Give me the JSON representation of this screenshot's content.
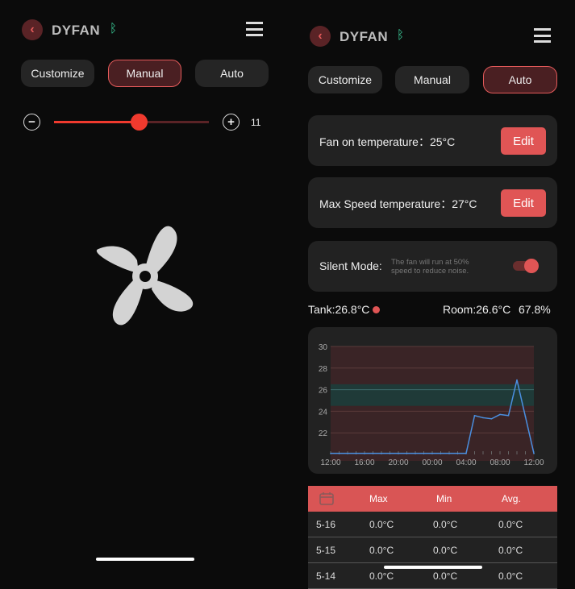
{
  "left": {
    "title": "DYFAN",
    "tabs": [
      "Customize",
      "Manual",
      "Auto"
    ],
    "active_tab": "Manual",
    "slider": {
      "value": 11,
      "fraction": 0.55
    }
  },
  "right": {
    "title": "DYFAN",
    "tabs": [
      "Customize",
      "Manual",
      "Auto"
    ],
    "active_tab": "Auto",
    "fan_on": {
      "label": "Fan on temperature：25°C",
      "button": "Edit"
    },
    "max_speed": {
      "label": "Max Speed temperature：27°C",
      "button": "Edit"
    },
    "silent": {
      "label": "Silent Mode:",
      "desc1": "The fan will run at 50%",
      "desc2": "speed to reduce noise.",
      "on": true
    },
    "tank": "Tank:26.8°C",
    "room": "Room:26.6°C",
    "humidity": "67.8%",
    "table": {
      "headers": [
        "Max",
        "Min",
        "Avg."
      ],
      "rows": [
        [
          "5-16",
          "0.0°C",
          "0.0°C",
          "0.0°C"
        ],
        [
          "5-15",
          "0.0°C",
          "0.0°C",
          "0.0°C"
        ],
        [
          "5-14",
          "0.0°C",
          "0.0°C",
          "0.0°C"
        ]
      ]
    }
  },
  "colors": {
    "accent": "#e05555",
    "bluetooth": "#3ed6a0",
    "line": "#4a8fe0",
    "band": "#1f3a38"
  },
  "chart_data": {
    "type": "line",
    "x": [
      "12:00",
      "13:00",
      "14:00",
      "15:00",
      "16:00",
      "17:00",
      "18:00",
      "19:00",
      "20:00",
      "21:00",
      "22:00",
      "23:00",
      "00:00",
      "01:00",
      "02:00",
      "03:00",
      "04:00",
      "05:00",
      "06:00",
      "07:00",
      "08:00",
      "09:00",
      "10:00",
      "11:00",
      "12:00"
    ],
    "values": [
      20.1,
      20.1,
      20.1,
      20.1,
      20.1,
      20.1,
      20.1,
      20.1,
      20.1,
      20.1,
      20.1,
      20.1,
      20.1,
      20.1,
      20.1,
      20.1,
      20.1,
      23.6,
      23.4,
      23.3,
      23.7,
      23.6,
      26.9,
      23.5,
      20.1
    ],
    "xticks": [
      "12:00",
      "16:00",
      "20:00",
      "00:00",
      "04:00",
      "08:00",
      "12:00"
    ],
    "yticks": [
      22,
      24,
      26,
      28,
      30
    ],
    "ylim": [
      20,
      30
    ],
    "band": [
      24.5,
      26.5
    ],
    "grid": true
  }
}
